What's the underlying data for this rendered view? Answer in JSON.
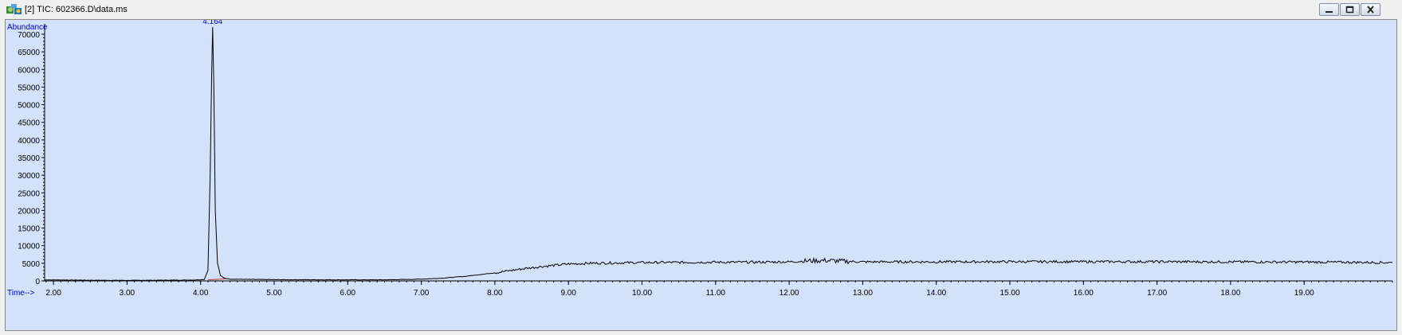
{
  "window": {
    "title": "[2] TIC: 602366.D\\data.ms",
    "icon": "chromatogram-app-icon",
    "buttons": [
      "minimize-icon",
      "restore-icon",
      "close-icon"
    ]
  },
  "colors": {
    "plot_background": "#d2e2fb",
    "axis_labels": "#0000cc",
    "trace": "#000000",
    "peak_baseline": "#cc3333"
  },
  "chart_data": {
    "type": "line",
    "title": "",
    "ylabel": "Abundance",
    "xlabel": "Time-->",
    "xlim": [
      1.88,
      20.2
    ],
    "ylim": [
      0,
      75000
    ],
    "x_ticks": [
      2,
      3,
      4,
      5,
      6,
      7,
      8,
      9,
      10,
      11,
      12,
      13,
      14,
      15,
      16,
      17,
      18,
      19
    ],
    "x_tick_labels": [
      "2.00",
      "3.00",
      "4.00",
      "5.00",
      "6.00",
      "7.00",
      "8.00",
      "9.00",
      "10.00",
      "11.00",
      "12.00",
      "13.00",
      "14.00",
      "15.00",
      "16.00",
      "17.00",
      "18.00",
      "19.00"
    ],
    "y_ticks": [
      0,
      5000,
      10000,
      15000,
      20000,
      25000,
      30000,
      35000,
      40000,
      45000,
      50000,
      55000,
      60000,
      65000,
      70000
    ],
    "y_tick_labels": [
      "0",
      "5000",
      "10000",
      "15000",
      "20000",
      "25000",
      "30000",
      "35000",
      "40000",
      "45000",
      "50000",
      "55000",
      "60000",
      "65000",
      "70000"
    ],
    "grid": false,
    "peak_labels": [
      {
        "x": 4.164,
        "y": 72000,
        "text": "4.164"
      }
    ],
    "series": [
      {
        "x": [
          1.88,
          2.5,
          3.0,
          3.5,
          3.9,
          4.05,
          4.1,
          4.13,
          4.15,
          4.164,
          4.18,
          4.2,
          4.23,
          4.27,
          4.32,
          4.4,
          5.0,
          6.0,
          6.5,
          7.0,
          7.3,
          7.6,
          7.8,
          8.0,
          8.2,
          8.4,
          8.6,
          8.8,
          9.0,
          9.3,
          9.6,
          10.0,
          10.5,
          11.0,
          11.5,
          12.0,
          12.3,
          12.5,
          12.7,
          13.0,
          14.0,
          15.0,
          16.0,
          17.0,
          18.0,
          19.0,
          19.5,
          20.2
        ],
        "y": [
          300,
          200,
          150,
          200,
          250,
          400,
          3000,
          30000,
          58000,
          72000,
          55000,
          20000,
          5000,
          1500,
          800,
          500,
          350,
          300,
          300,
          500,
          800,
          1300,
          1800,
          2300,
          2900,
          3500,
          4000,
          4400,
          4800,
          5000,
          5100,
          5200,
          5250,
          5300,
          5300,
          5400,
          5700,
          5800,
          5600,
          5400,
          5400,
          5450,
          5450,
          5450,
          5400,
          5350,
          5300,
          5200
        ]
      }
    ]
  }
}
